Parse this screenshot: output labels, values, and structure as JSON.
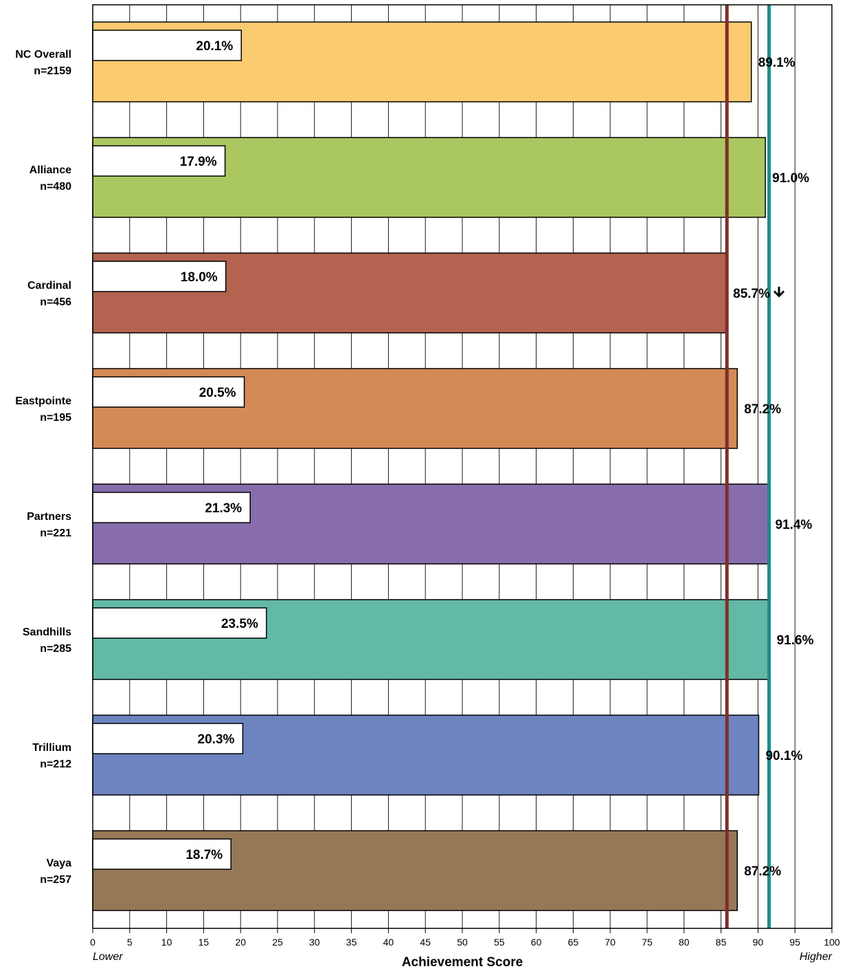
{
  "chart_data": {
    "type": "bar",
    "orientation": "horizontal",
    "categories": [
      "NC Overall",
      "Alliance",
      "Cardinal",
      "Eastpointe",
      "Partners",
      "Sandhills",
      "Trillium",
      "Vaya"
    ],
    "n_labels": [
      "n=2159",
      "n=480",
      "n=456",
      "n=195",
      "n=221",
      "n=285",
      "n=212",
      "n=257"
    ],
    "series": [
      {
        "values": [
          89.1,
          91.0,
          85.7,
          87.2,
          91.4,
          91.6,
          90.1,
          87.2
        ]
      },
      {
        "values": [
          20.1,
          17.9,
          18.0,
          20.5,
          21.3,
          23.5,
          20.3,
          18.7
        ]
      }
    ],
    "value_labels": [
      "89.1%",
      "91.0%",
      "85.7%",
      "87.2%",
      "91.4%",
      "91.6%",
      "90.1%",
      "87.2%"
    ],
    "inner_labels": [
      "20.1%",
      "17.9%",
      "18.0%",
      "20.5%",
      "21.3%",
      "23.5%",
      "20.3%",
      "18.7%"
    ],
    "down_arrow_index": 2,
    "bar_colors": [
      "#FACB71",
      "#ABC760",
      "#B3634F",
      "#D48A57",
      "#876DAC",
      "#62B9A6",
      "#6D84C1",
      "#977856"
    ],
    "reference_lines": [
      {
        "value": 85.8,
        "color": "#7E2E2A"
      },
      {
        "value": 91.5,
        "color": "#1C8C8C"
      }
    ],
    "xlim": [
      0,
      100
    ],
    "xticks": [
      "0",
      "5",
      "10",
      "15",
      "20",
      "25",
      "30",
      "35",
      "40",
      "45",
      "50",
      "55",
      "60",
      "65",
      "70",
      "75",
      "80",
      "85",
      "90",
      "95",
      "100"
    ],
    "xlabel": "Achievement Score",
    "x_low_label": "Lower",
    "x_high_label": "Higher",
    "grid": true
  }
}
